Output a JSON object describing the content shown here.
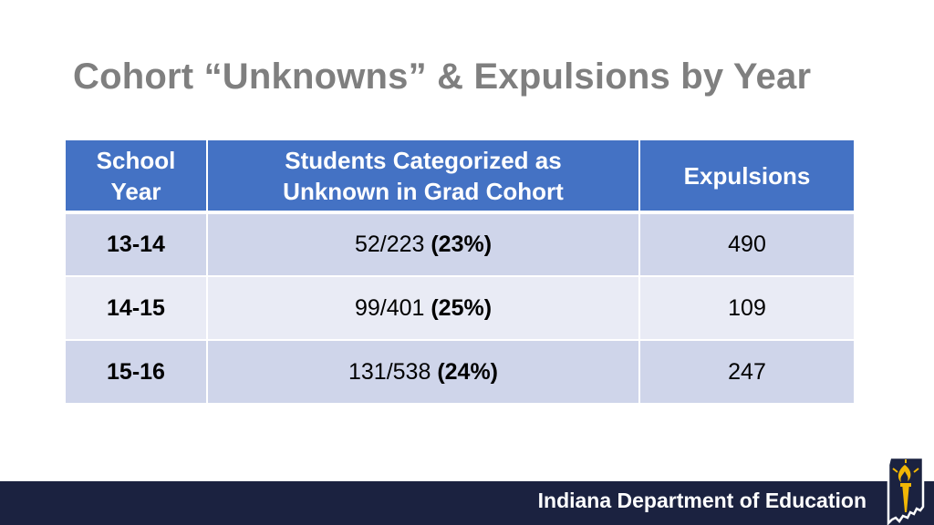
{
  "title": "Cohort “Unknowns” & Expulsions by Year",
  "table": {
    "headers": {
      "school_year": [
        "School",
        "Year"
      ],
      "students": [
        "Students Categorized as",
        "Unknown in Grad Cohort"
      ],
      "expulsions": "Expulsions"
    },
    "rows": [
      {
        "year": "13-14",
        "ratio": "52/223",
        "pct": "(23%)",
        "expulsions": "490"
      },
      {
        "year": "14-15",
        "ratio": "99/401",
        "pct": "(25%)",
        "expulsions": "109"
      },
      {
        "year": "15-16",
        "ratio": "131/538",
        "pct": "(24%)",
        "expulsions": "247"
      }
    ]
  },
  "footer": {
    "org_name": "Indiana Department of Education",
    "logo_icon": "indiana-torch-logo-icon"
  },
  "colors": {
    "header_blue": "#4472c4",
    "row_dark": "#cfd5ea",
    "row_light": "#e9ebf5",
    "title_gray": "#7f7f7f",
    "footer_navy": "#1b2240",
    "logo_gold": "#f2b705"
  }
}
